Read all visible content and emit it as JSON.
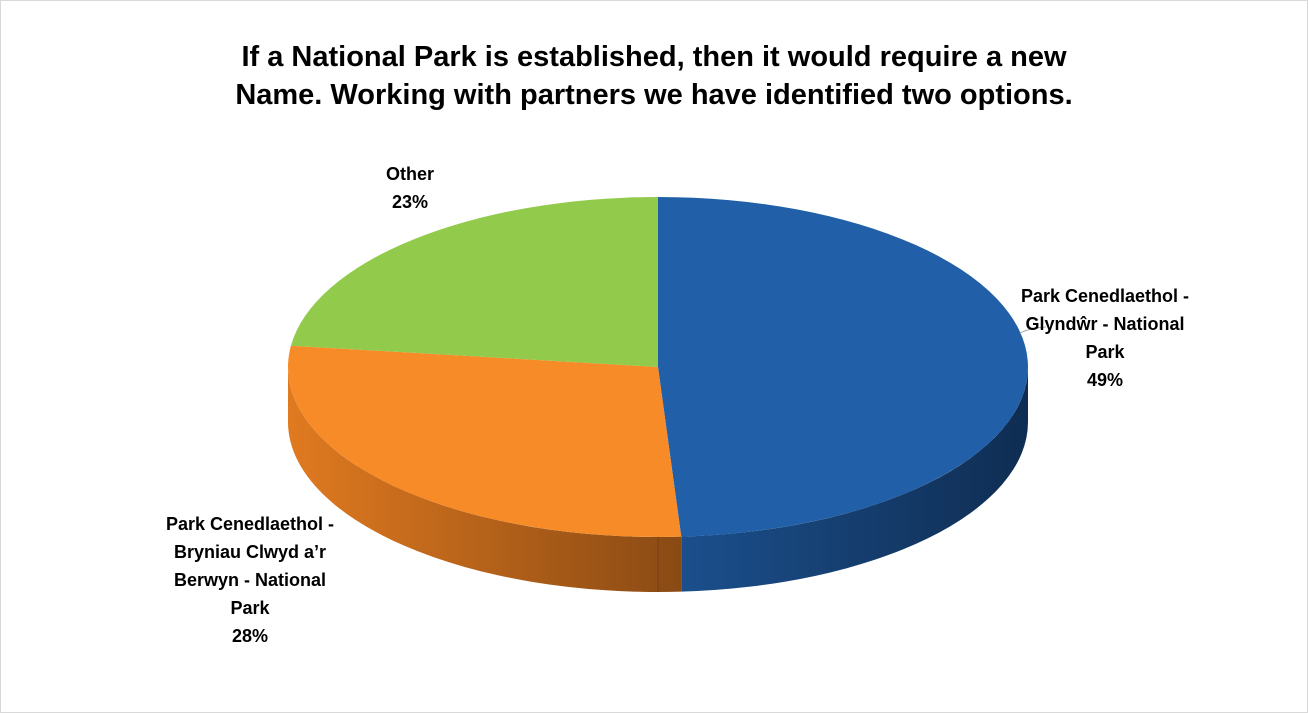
{
  "chart_data": {
    "type": "pie",
    "title_lines": [
      "If a National Park is established, then it would require a new",
      "Name. Working with partners we have identified two options."
    ],
    "slices": [
      {
        "label_lines": [
          "Park Cenedlaethol -",
          "Glyndŵr - National",
          "Park"
        ],
        "value": 49,
        "percent_label": "49%",
        "color": "#2160A8",
        "side_color": "#163F70"
      },
      {
        "label_lines": [
          "Park Cenedlaethol -",
          "Bryniau Clwyd a’r",
          "Berwyn - National",
          "Park"
        ],
        "value": 28,
        "percent_label": "28%",
        "color": "#F68B27",
        "side_color": "#B8621A"
      },
      {
        "label_lines": [
          "Other"
        ],
        "value": 23,
        "percent_label": "23%",
        "color": "#92CA4C",
        "side_color": "#6E9A38"
      }
    ],
    "legend": "none",
    "style": "3d-pie"
  }
}
